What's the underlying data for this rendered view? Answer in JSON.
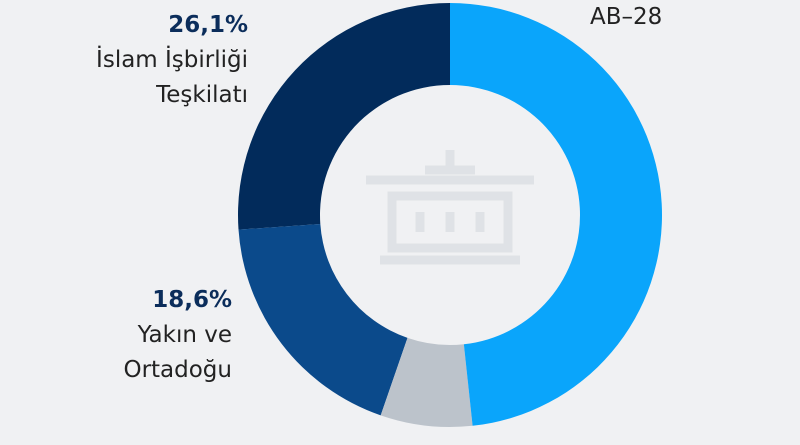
{
  "chart_data": {
    "type": "donut",
    "categories": [
      "AB–28",
      null,
      "Yakın ve Ortadoğu",
      "İslam İşbirliği Teşkilatı"
    ],
    "values": [
      48.3,
      7.0,
      18.6,
      26.1
    ],
    "value_labels": [
      null,
      null,
      "18,6%",
      "26,1%"
    ],
    "colors": [
      "#0aa5fb",
      "#bcc3cb",
      "#0b4a8b",
      "#022b5b"
    ]
  }
}
